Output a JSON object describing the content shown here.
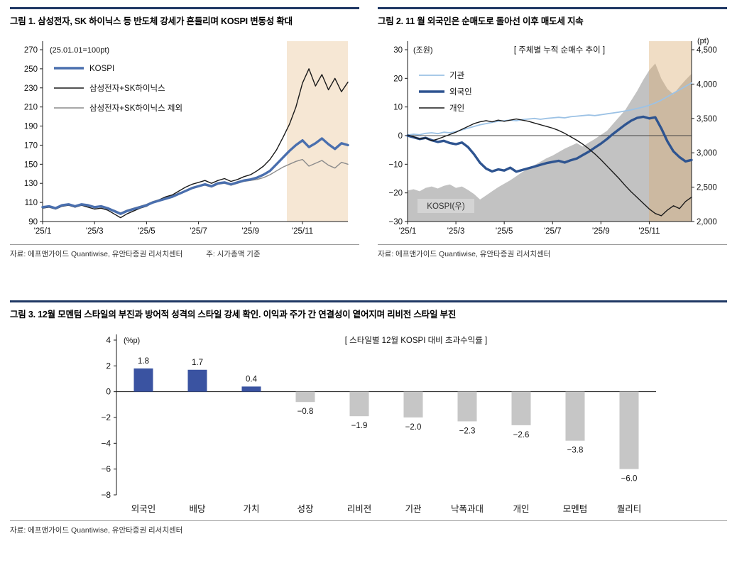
{
  "figures": {
    "fig1": {
      "title": "그림 1. 삼성전자, SK 하이닉스 등 반도체 강세가 흔들리며 KOSPI 변동성 확대",
      "source": "자료: 에프앤가이드 Quantiwise, 유안타증권 리서치센터",
      "note": "주: 시가총액 기준"
    },
    "fig2": {
      "title": "그림 2. 11 월 외국인은 순매도로 돌아선 이후 매도세 지속",
      "source": "자료: 에프앤가이드 Quantiwise, 유안타증권 리서치센터"
    },
    "fig3": {
      "title": "그림 3. 12월 모멘텀 스타일의 부진과 방어적 성격의 스타일 강세 확인. 이익과 주가 간 연결성이 옅어지며 리비전 스타일 부진",
      "source": "자료: 에프앤가이드 Quantiwise, 유안타증권 리서치센터"
    }
  },
  "colors": {
    "rule_navy": "#1f3864",
    "kospi_blue": "#4a6fae",
    "foreign_blue": "#2e5490",
    "institution_blue": "#9cc2e5",
    "bar_positive": "#3a53a1",
    "bar_negative": "#c6c6c6",
    "shade_tan": "#f6e7d4"
  },
  "chart_data": [
    {
      "type": "line",
      "unit_label": "(25.01.01=100pt)",
      "x_ticks": [
        "'25/1",
        "'25/3",
        "'25/5",
        "'25/7",
        "'25/9",
        "'25/11"
      ],
      "x_tick_idx": [
        0,
        8,
        16,
        24,
        32,
        40
      ],
      "ylim": [
        90,
        270
      ],
      "ytick_step": 20,
      "shade_start_frac": 0.8,
      "shade_color": "#f6e7d4",
      "series": [
        {
          "name": "KOSPI",
          "color": "#4a6fae",
          "width": 3.4,
          "values": [
            105,
            106,
            104,
            107,
            108,
            106,
            108,
            107,
            105,
            106,
            104,
            101,
            98,
            101,
            103,
            105,
            107,
            110,
            112,
            114,
            116,
            119,
            122,
            125,
            127,
            129,
            127,
            130,
            131,
            129,
            131,
            133,
            134,
            136,
            139,
            143,
            150,
            157,
            164,
            170,
            175,
            168,
            172,
            177,
            171,
            166,
            172,
            170
          ]
        },
        {
          "name": "삼성전자+SK하이닉스",
          "color": "#1a1a1a",
          "width": 1.4,
          "values": [
            104,
            105,
            103,
            106,
            107,
            105,
            107,
            105,
            103,
            104,
            102,
            98,
            94,
            98,
            101,
            104,
            106,
            110,
            113,
            116,
            118,
            122,
            126,
            129,
            131,
            133,
            130,
            133,
            135,
            132,
            134,
            137,
            139,
            143,
            148,
            155,
            165,
            178,
            192,
            210,
            235,
            250,
            232,
            244,
            228,
            240,
            226,
            236
          ]
        },
        {
          "name": "삼성전자+SK하이닉스 제외",
          "color": "#8c8c8c",
          "width": 1.4,
          "values": [
            105,
            106,
            104,
            107,
            108,
            106,
            108,
            107,
            105,
            106,
            104,
            102,
            99,
            102,
            104,
            106,
            108,
            111,
            113,
            115,
            117,
            120,
            122,
            125,
            127,
            128,
            126,
            129,
            130,
            128,
            130,
            132,
            133,
            134,
            136,
            139,
            143,
            147,
            150,
            153,
            155,
            148,
            151,
            154,
            149,
            146,
            152,
            150
          ]
        }
      ]
    },
    {
      "type": "line+area",
      "left_unit": "(조원)",
      "right_unit": "(pt)",
      "inner_title": "[ 주체별 누적 순매수 추이 ]",
      "x_ticks": [
        "'25/1",
        "'25/3",
        "'25/5",
        "'25/7",
        "'25/9",
        "'25/11"
      ],
      "x_tick_idx": [
        0,
        8,
        16,
        24,
        32,
        40
      ],
      "left_ylim": [
        -30,
        30
      ],
      "left_step": 10,
      "right_ylim": [
        2000,
        4500
      ],
      "right_step": 500,
      "shade_start_frac": 0.85,
      "shade_color": "#dcae74",
      "shade_opacity": 0.42,
      "area": {
        "name": "KOSPI(우)",
        "color": "#c2c2c2",
        "values": [
          2450,
          2470,
          2440,
          2490,
          2510,
          2480,
          2520,
          2540,
          2490,
          2510,
          2460,
          2400,
          2320,
          2380,
          2440,
          2500,
          2550,
          2600,
          2660,
          2720,
          2770,
          2820,
          2870,
          2920,
          2960,
          3010,
          3060,
          3100,
          3140,
          3090,
          3150,
          3200,
          3260,
          3320,
          3420,
          3520,
          3620,
          3760,
          3900,
          4060,
          4200,
          4300,
          4080,
          3930,
          3850,
          3960,
          4060,
          4150
        ]
      },
      "series": [
        {
          "name": "기관",
          "color": "#9cc2e5",
          "width": 1.8,
          "values": [
            0.2,
            0.5,
            0.3,
            0.8,
            1.0,
            0.7,
            1.2,
            1.0,
            1.4,
            2.0,
            2.6,
            3.2,
            3.8,
            4.2,
            4.6,
            5.0,
            5.2,
            5.4,
            5.2,
            5.6,
            5.8,
            6.0,
            5.7,
            6.0,
            6.2,
            6.4,
            6.2,
            6.6,
            6.8,
            7.0,
            7.2,
            7.0,
            7.3,
            7.6,
            7.9,
            8.2,
            8.6,
            9.0,
            9.5,
            10.0,
            10.6,
            11.4,
            12.4,
            13.6,
            14.8,
            16.0,
            17.2,
            18.4
          ]
        },
        {
          "name": "외국인",
          "color": "#2e5490",
          "width": 3.4,
          "values": [
            0,
            -0.6,
            -1.2,
            -0.8,
            -1.6,
            -2.2,
            -1.8,
            -2.6,
            -3.0,
            -2.4,
            -4.0,
            -6.5,
            -9.5,
            -11.5,
            -12.5,
            -11.8,
            -12.2,
            -11.2,
            -12.6,
            -12.0,
            -11.4,
            -10.8,
            -10.2,
            -9.6,
            -9.2,
            -8.8,
            -9.4,
            -8.6,
            -8.0,
            -6.8,
            -5.6,
            -4.2,
            -2.8,
            -1.2,
            0.6,
            2.2,
            3.8,
            5.2,
            6.2,
            6.6,
            6.0,
            6.4,
            2.5,
            -2.0,
            -5.5,
            -7.5,
            -9.0,
            -8.5
          ]
        },
        {
          "name": "개인",
          "color": "#1a1a1a",
          "width": 1.4,
          "values": [
            0.2,
            -0.4,
            -1.2,
            -0.8,
            -1.8,
            -1.2,
            -0.4,
            0.4,
            1.2,
            2.2,
            3.2,
            4.2,
            4.8,
            5.2,
            4.8,
            5.4,
            5.0,
            5.4,
            5.8,
            5.4,
            5.0,
            4.4,
            3.8,
            3.2,
            2.6,
            1.8,
            0.8,
            -0.4,
            -1.6,
            -3.0,
            -4.6,
            -6.4,
            -8.4,
            -10.6,
            -12.8,
            -15.0,
            -17.4,
            -19.6,
            -21.6,
            -23.6,
            -25.6,
            -27.2,
            -28.0,
            -26.0,
            -24.5,
            -25.5,
            -23.0,
            -21.5
          ]
        }
      ]
    },
    {
      "type": "bar",
      "unit_label": "(%p)",
      "inner_title": "[ 스타일별 12월 KOSPI 대비 초과수익률 ]",
      "categories": [
        "외국인",
        "배당",
        "가치",
        "성장",
        "리비전",
        "기관",
        "낙폭과대",
        "개인",
        "모멘텀",
        "퀄리티"
      ],
      "values": [
        1.8,
        1.7,
        0.4,
        -0.8,
        -1.9,
        -2.0,
        -2.3,
        -2.6,
        -3.8,
        -6.0
      ],
      "ylim": [
        -8,
        4
      ],
      "ytick_step": 2,
      "pos_color": "#3a53a1",
      "neg_color": "#c6c6c6"
    }
  ]
}
